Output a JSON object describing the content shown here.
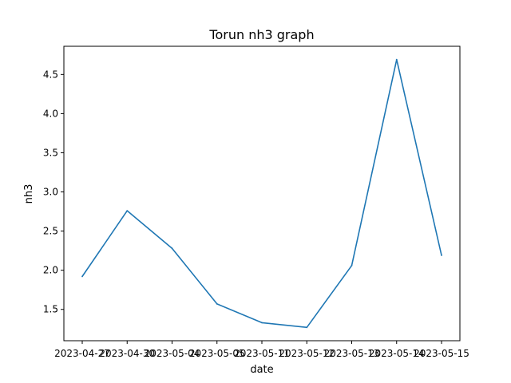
{
  "chart_data": {
    "type": "line",
    "title": "Torun nh3 graph",
    "xlabel": "date",
    "ylabel": "nh3",
    "x": [
      "2023-04-27",
      "2023-04-30",
      "2023-05-04",
      "2023-05-05",
      "2023-05-11",
      "2023-05-12",
      "2023-05-13",
      "2023-05-14",
      "2023-05-15"
    ],
    "series": [
      {
        "values": [
          1.92,
          2.76,
          2.28,
          1.57,
          1.33,
          1.27,
          2.06,
          4.69,
          2.19
        ],
        "color": "#1f77b4"
      }
    ],
    "ylim": [
      1.1,
      4.86
    ],
    "yticks": [
      "1.5",
      "2.0",
      "2.5",
      "3.0",
      "3.5",
      "4.0",
      "4.5"
    ],
    "grid": false,
    "legend": "none"
  }
}
